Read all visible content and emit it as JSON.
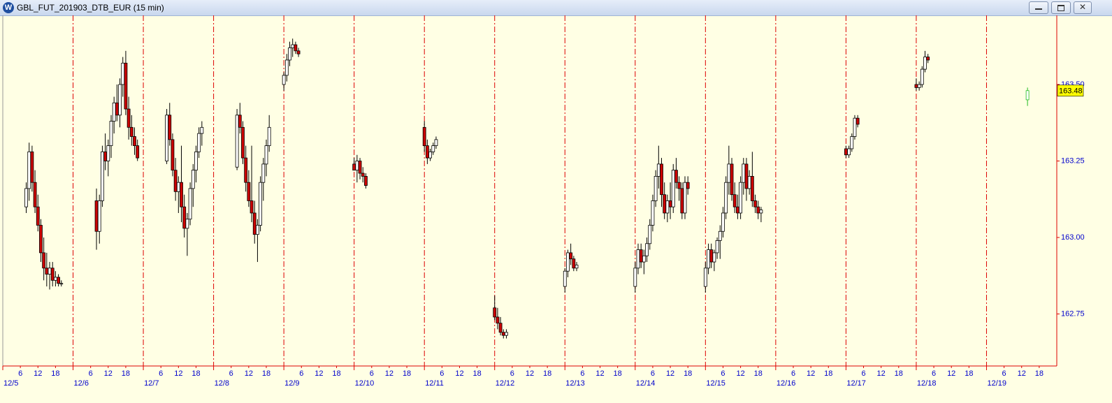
{
  "window": {
    "title": "GBL_FUT_201903_DTB_EUR (15 min)"
  },
  "chart_data": {
    "type": "candlestick",
    "x": [
      8,
      9,
      10,
      11,
      12,
      13,
      14,
      15,
      16,
      17,
      18,
      19,
      20,
      32,
      33,
      34,
      35,
      36,
      37,
      38,
      39,
      40,
      41,
      42,
      43,
      44,
      45,
      46,
      56,
      57,
      58,
      59,
      60,
      61,
      62,
      63,
      64,
      65,
      66,
      67,
      68,
      80,
      81,
      82,
      83,
      84,
      85,
      86,
      87,
      88,
      89,
      90,
      91,
      96,
      97,
      98,
      99,
      100,
      101,
      120,
      121,
      122,
      123,
      124,
      144,
      145,
      146,
      147,
      148,
      168,
      169,
      170,
      171,
      172,
      192,
      193,
      194,
      195,
      196,
      216,
      217,
      218,
      219,
      220,
      221,
      222,
      223,
      224,
      225,
      226,
      227,
      228,
      229,
      230,
      231,
      232,
      233,
      234,
      240,
      241,
      242,
      243,
      244,
      245,
      246,
      247,
      248,
      249,
      250,
      251,
      252,
      253,
      254,
      255,
      256,
      257,
      258,
      259,
      288,
      289,
      290,
      291,
      292,
      312,
      313,
      314,
      315,
      316,
      350
    ],
    "open": [
      163.1,
      163.16,
      163.28,
      163.18,
      163.1,
      163.04,
      162.95,
      162.9,
      162.88,
      162.9,
      162.86,
      162.87,
      162.85,
      163.12,
      163.02,
      163.12,
      163.28,
      163.25,
      163.3,
      163.38,
      163.44,
      163.4,
      163.5,
      163.57,
      163.42,
      163.36,
      163.33,
      163.3,
      163.25,
      163.4,
      163.32,
      163.22,
      163.15,
      163.18,
      163.1,
      163.03,
      163.06,
      163.16,
      163.22,
      163.28,
      163.34,
      163.23,
      163.4,
      163.36,
      163.26,
      163.18,
      163.12,
      163.08,
      163.01,
      163.04,
      163.18,
      163.24,
      163.3,
      163.5,
      163.53,
      163.58,
      163.62,
      163.63,
      163.61,
      163.24,
      163.22,
      163.25,
      163.21,
      163.2,
      163.36,
      163.3,
      163.26,
      163.28,
      163.3,
      162.77,
      162.74,
      162.72,
      162.69,
      162.68,
      162.84,
      162.89,
      162.95,
      162.93,
      162.9,
      162.84,
      162.9,
      162.96,
      162.92,
      162.94,
      162.98,
      163.04,
      163.12,
      163.2,
      163.24,
      163.14,
      163.08,
      163.12,
      163.1,
      163.22,
      163.18,
      163.16,
      163.08,
      163.18,
      162.84,
      162.9,
      162.96,
      162.92,
      162.95,
      162.99,
      163.02,
      163.08,
      163.18,
      163.24,
      163.14,
      163.1,
      163.08,
      163.18,
      163.24,
      163.16,
      163.2,
      163.12,
      163.1,
      163.08,
      163.29,
      163.27,
      163.29,
      163.33,
      163.39,
      163.5,
      163.49,
      163.5,
      163.55,
      163.59,
      163.45
    ],
    "high": [
      163.18,
      163.31,
      163.3,
      163.22,
      163.14,
      163.06,
      163.0,
      162.95,
      162.92,
      162.92,
      162.89,
      162.88,
      162.86,
      163.16,
      163.14,
      163.3,
      163.34,
      163.32,
      163.4,
      163.46,
      163.5,
      163.52,
      163.59,
      163.61,
      163.46,
      163.4,
      163.36,
      163.32,
      163.42,
      163.44,
      163.34,
      163.26,
      163.2,
      163.3,
      163.14,
      163.08,
      163.18,
      163.24,
      163.3,
      163.36,
      163.38,
      163.42,
      163.44,
      163.38,
      163.3,
      163.22,
      163.3,
      163.12,
      163.06,
      163.2,
      163.26,
      163.32,
      163.4,
      163.54,
      163.6,
      163.64,
      163.65,
      163.64,
      163.62,
      163.26,
      163.27,
      163.26,
      163.23,
      163.21,
      163.38,
      163.32,
      163.29,
      163.31,
      163.33,
      162.81,
      162.77,
      162.74,
      162.7,
      162.7,
      162.9,
      162.96,
      162.98,
      162.94,
      162.92,
      162.92,
      162.98,
      162.98,
      162.96,
      163.0,
      163.06,
      163.14,
      163.22,
      163.3,
      163.26,
      163.18,
      163.14,
      163.18,
      163.24,
      163.26,
      163.2,
      163.18,
      163.2,
      163.2,
      162.92,
      162.98,
      162.98,
      162.96,
      163.0,
      163.04,
      163.1,
      163.2,
      163.3,
      163.26,
      163.18,
      163.14,
      163.2,
      163.26,
      163.26,
      163.22,
      163.28,
      163.14,
      163.12,
      163.1,
      163.3,
      163.3,
      163.34,
      163.4,
      163.4,
      163.52,
      163.51,
      163.56,
      163.61,
      163.6,
      163.49
    ],
    "low": [
      163.08,
      163.12,
      163.15,
      163.08,
      163.02,
      162.92,
      162.86,
      162.84,
      162.83,
      162.84,
      162.84,
      162.84,
      162.84,
      162.96,
      162.98,
      163.1,
      163.22,
      163.2,
      163.26,
      163.34,
      163.38,
      163.36,
      163.46,
      163.4,
      163.32,
      163.3,
      163.27,
      163.25,
      163.24,
      163.3,
      163.2,
      163.12,
      163.08,
      163.05,
      163.0,
      162.94,
      163.04,
      163.1,
      163.18,
      163.26,
      163.3,
      163.22,
      163.34,
      163.24,
      163.15,
      163.1,
      163.05,
      162.98,
      162.92,
      163.02,
      163.12,
      163.2,
      163.28,
      163.48,
      163.51,
      163.56,
      163.59,
      163.6,
      163.59,
      163.22,
      163.18,
      163.19,
      163.18,
      163.16,
      163.28,
      163.24,
      163.25,
      163.27,
      163.29,
      162.73,
      162.7,
      162.68,
      162.67,
      162.67,
      162.82,
      162.87,
      162.91,
      162.89,
      162.89,
      162.82,
      162.88,
      162.9,
      162.88,
      162.92,
      162.96,
      163.02,
      163.1,
      163.16,
      163.1,
      163.06,
      163.05,
      163.06,
      163.08,
      163.16,
      163.12,
      163.06,
      163.06,
      163.14,
      162.82,
      162.88,
      162.9,
      162.89,
      162.93,
      162.93,
      163.0,
      163.06,
      163.14,
      163.12,
      163.08,
      163.06,
      163.06,
      163.14,
      163.12,
      163.14,
      163.1,
      163.08,
      163.06,
      163.05,
      163.26,
      163.26,
      163.28,
      163.32,
      163.36,
      163.48,
      163.48,
      163.49,
      163.54,
      163.57,
      163.43
    ],
    "close": [
      163.16,
      163.28,
      163.18,
      163.1,
      163.04,
      162.95,
      162.9,
      162.88,
      162.9,
      162.86,
      162.87,
      162.85,
      162.85,
      163.02,
      163.12,
      163.28,
      163.25,
      163.3,
      163.38,
      163.44,
      163.4,
      163.5,
      163.57,
      163.42,
      163.36,
      163.33,
      163.3,
      163.26,
      163.4,
      163.32,
      163.22,
      163.15,
      163.18,
      163.1,
      163.03,
      163.06,
      163.16,
      163.22,
      163.28,
      163.34,
      163.36,
      163.4,
      163.36,
      163.26,
      163.18,
      163.12,
      163.08,
      163.01,
      163.04,
      163.18,
      163.24,
      163.3,
      163.36,
      163.53,
      163.58,
      163.62,
      163.63,
      163.61,
      163.6,
      163.22,
      163.25,
      163.21,
      163.2,
      163.17,
      163.3,
      163.26,
      163.28,
      163.3,
      163.32,
      162.74,
      162.72,
      162.69,
      162.68,
      162.69,
      162.89,
      162.95,
      162.93,
      162.9,
      162.91,
      162.9,
      162.96,
      162.92,
      162.94,
      162.98,
      163.04,
      163.12,
      163.2,
      163.24,
      163.14,
      163.08,
      163.12,
      163.1,
      163.22,
      163.18,
      163.16,
      163.08,
      163.18,
      163.16,
      162.9,
      162.96,
      162.92,
      162.95,
      162.99,
      163.02,
      163.08,
      163.18,
      163.24,
      163.14,
      163.1,
      163.08,
      163.18,
      163.24,
      163.16,
      163.2,
      163.12,
      163.1,
      163.08,
      163.09,
      163.27,
      163.29,
      163.33,
      163.39,
      163.37,
      163.49,
      163.5,
      163.55,
      163.59,
      163.58,
      163.48
    ],
    "up_color": "#ffffff",
    "down_color": "#cc0000",
    "last_color": "#22bb22",
    "separator_color": "#dd0000",
    "xlim": [
      0,
      360
    ],
    "ylim": [
      162.58,
      163.726
    ],
    "yticks": [
      {
        "value": 162.75,
        "label": "162.75"
      },
      {
        "value": 163,
        "label": "163.00"
      },
      {
        "value": 163.25,
        "label": "163.25"
      },
      {
        "value": 163.5,
        "label": "163.50"
      }
    ],
    "day_ticks": [
      {
        "value": 0,
        "label": "12/5"
      },
      {
        "value": 24,
        "label": "12/6"
      },
      {
        "value": 48,
        "label": "12/7"
      },
      {
        "value": 72,
        "label": "12/8"
      },
      {
        "value": 96,
        "label": "12/9"
      },
      {
        "value": 120,
        "label": "12/10"
      },
      {
        "value": 144,
        "label": "12/11"
      },
      {
        "value": 168,
        "label": "12/12"
      },
      {
        "value": 192,
        "label": "12/13"
      },
      {
        "value": 216,
        "label": "12/14"
      },
      {
        "value": 240,
        "label": "12/15"
      },
      {
        "value": 264,
        "label": "12/16"
      },
      {
        "value": 288,
        "label": "12/17"
      },
      {
        "value": 312,
        "label": "12/18"
      },
      {
        "value": 336,
        "label": "12/19"
      }
    ],
    "hour_ticks": [
      6,
      12,
      18,
      {
        "value": 30,
        "label": "6"
      },
      {
        "value": 36,
        "label": "12"
      },
      {
        "value": 42,
        "label": "18"
      },
      {
        "value": 54,
        "label": "6"
      },
      {
        "value": 60,
        "label": "12"
      },
      {
        "value": 66,
        "label": "18"
      },
      {
        "value": 78,
        "label": "6"
      },
      {
        "value": 84,
        "label": "12"
      },
      {
        "value": 90,
        "label": "18"
      },
      {
        "value": 102,
        "label": "6"
      },
      {
        "value": 108,
        "label": "12"
      },
      {
        "value": 114,
        "label": "18"
      },
      {
        "value": 126,
        "label": "6"
      },
      {
        "value": 132,
        "label": "12"
      },
      {
        "value": 138,
        "label": "18"
      },
      {
        "value": 150,
        "label": "6"
      },
      {
        "value": 156,
        "label": "12"
      },
      {
        "value": 162,
        "label": "18"
      },
      {
        "value": 174,
        "label": "6"
      },
      {
        "value": 180,
        "label": "12"
      },
      {
        "value": 186,
        "label": "18"
      },
      {
        "value": 198,
        "label": "6"
      },
      {
        "value": 204,
        "label": "12"
      },
      {
        "value": 210,
        "label": "18"
      },
      {
        "value": 222,
        "label": "6"
      },
      {
        "value": 228,
        "label": "12"
      },
      {
        "value": 234,
        "label": "18"
      },
      {
        "value": 246,
        "label": "6"
      },
      {
        "value": 252,
        "label": "12"
      },
      {
        "value": 258,
        "label": "18"
      },
      {
        "value": 270,
        "label": "6"
      },
      {
        "value": 276,
        "label": "12"
      },
      {
        "value": 282,
        "label": "18"
      },
      {
        "value": 294,
        "label": "6"
      },
      {
        "value": 300,
        "label": "12"
      },
      {
        "value": 306,
        "label": "18"
      },
      {
        "value": 318,
        "label": "6"
      },
      {
        "value": 324,
        "label": "12"
      },
      {
        "value": 330,
        "label": "18"
      },
      {
        "value": 342,
        "label": "6"
      },
      {
        "value": 348,
        "label": "12"
      },
      {
        "value": 354,
        "label": "18"
      }
    ]
  }
}
